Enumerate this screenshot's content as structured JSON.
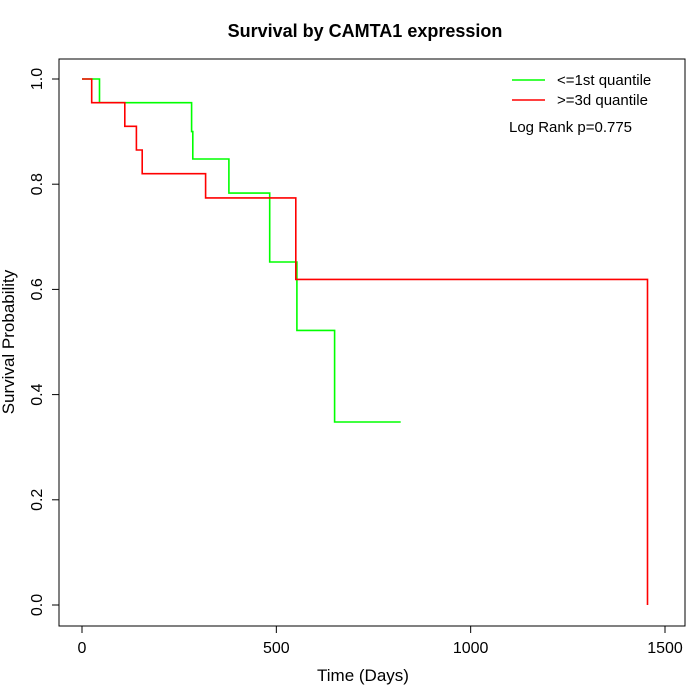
{
  "chart_data": {
    "type": "line",
    "title": "Survival by CAMTA1 expression",
    "xlabel": "Time (Days)",
    "ylabel": "Survival Probability",
    "xlim": [
      0,
      1500
    ],
    "ylim": [
      0,
      1
    ],
    "x_ticks": [
      0,
      500,
      1000,
      1500
    ],
    "y_ticks": [
      0.0,
      0.2,
      0.4,
      0.6,
      0.8,
      1.0
    ],
    "x_tick_labels": [
      "0",
      "500",
      "1000",
      "1500"
    ],
    "y_tick_labels": [
      "0.0",
      "0.2",
      "0.4",
      "0.6",
      "0.8",
      "1.0"
    ],
    "legend_position": "top-right",
    "annotation": "Log Rank p=0.775",
    "series": [
      {
        "name": "<=1st quantile",
        "color": "#00ff00",
        "step": true,
        "points": [
          [
            0,
            1.0
          ],
          [
            45,
            1.0
          ],
          [
            45,
            0.955
          ],
          [
            282,
            0.955
          ],
          [
            282,
            0.9
          ],
          [
            285,
            0.9
          ],
          [
            285,
            0.848
          ],
          [
            378,
            0.848
          ],
          [
            378,
            0.783
          ],
          [
            483,
            0.783
          ],
          [
            483,
            0.652
          ],
          [
            553,
            0.652
          ],
          [
            553,
            0.522
          ],
          [
            650,
            0.522
          ],
          [
            650,
            0.348
          ],
          [
            820,
            0.348
          ]
        ]
      },
      {
        "name": ">=3d quantile",
        "color": "#ff0000",
        "step": true,
        "points": [
          [
            0,
            1.0
          ],
          [
            25,
            1.0
          ],
          [
            25,
            0.955
          ],
          [
            110,
            0.955
          ],
          [
            110,
            0.91
          ],
          [
            140,
            0.91
          ],
          [
            140,
            0.865
          ],
          [
            155,
            0.865
          ],
          [
            155,
            0.82
          ],
          [
            318,
            0.82
          ],
          [
            318,
            0.774
          ],
          [
            550,
            0.774
          ],
          [
            550,
            0.619
          ],
          [
            1455,
            0.619
          ],
          [
            1455,
            0.0
          ]
        ]
      }
    ]
  }
}
